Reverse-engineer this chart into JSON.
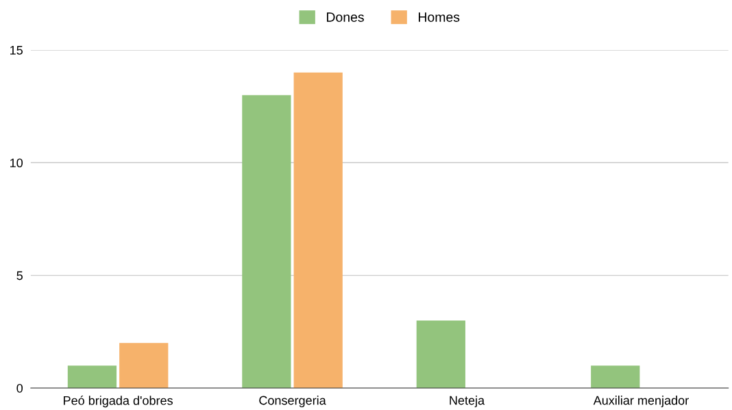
{
  "chart_data": {
    "type": "bar",
    "categories": [
      "Peó brigada d'obres",
      "Consergeria",
      "Neteja",
      "Auxiliar menjador"
    ],
    "series": [
      {
        "name": "Dones",
        "color": "#93c47d",
        "values": [
          1,
          13,
          3,
          1
        ]
      },
      {
        "name": "Homes",
        "color": "#f6b26b",
        "values": [
          2,
          14,
          0,
          0
        ]
      }
    ],
    "ylim": [
      0,
      15
    ],
    "yticks": [
      0,
      5,
      10,
      15
    ],
    "grid": "y",
    "legend": "top"
  }
}
